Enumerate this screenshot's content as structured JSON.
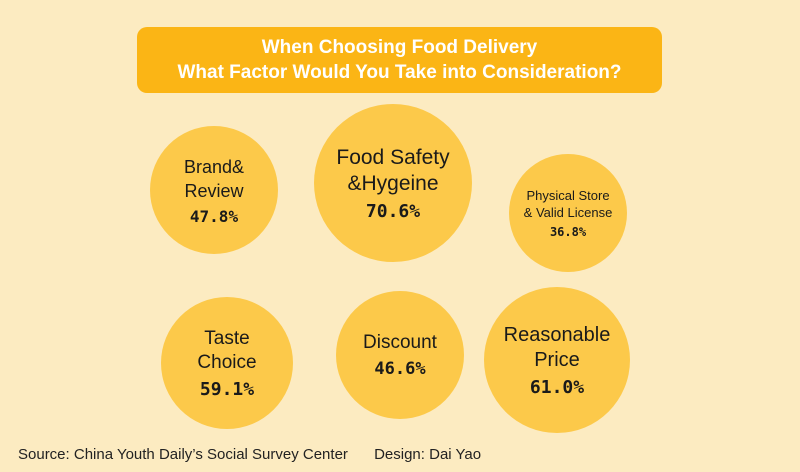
{
  "title_lines": [
    "When Choosing Food Delivery",
    "What Factor Would You Take into Consideration?"
  ],
  "footer": {
    "source": "Source: China Youth Daily’s Social Survey Center",
    "design": "Design: Dai Yao"
  },
  "colors": {
    "background": "#FCEBC1",
    "title_box": "#FBB515",
    "bubble": "#FCC94A",
    "text": "#1A1A1A"
  },
  "chart_data": {
    "type": "bubble",
    "unit": "%",
    "items": [
      {
        "label_lines": [
          "Brand&",
          "Review"
        ],
        "value": 47.8,
        "value_label": "47.8%"
      },
      {
        "label_lines": [
          "Food Safety",
          "&Hygeine"
        ],
        "value": 70.6,
        "value_label": "70.6%"
      },
      {
        "label_lines": [
          "Physical Store",
          "& Valid License"
        ],
        "value": 36.8,
        "value_label": "36.8%"
      },
      {
        "label_lines": [
          "Taste",
          "Choice"
        ],
        "value": 59.1,
        "value_label": "59.1%"
      },
      {
        "label_lines": [
          "Discount"
        ],
        "value": 46.6,
        "value_label": "46.6%"
      },
      {
        "label_lines": [
          "Reasonable",
          "Price"
        ],
        "value": 61.0,
        "value_label": "61.0%"
      }
    ]
  }
}
